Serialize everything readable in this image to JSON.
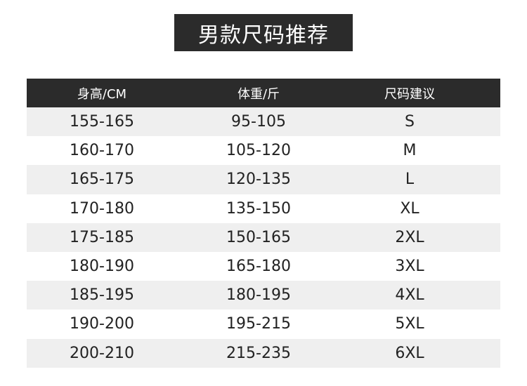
{
  "title": "男款尺码推荐",
  "headers": [
    "身高/CM",
    "体重/斤",
    "尺码建议"
  ],
  "rows": [
    [
      "155-165",
      "95-105",
      "S"
    ],
    [
      "160-170",
      "105-120",
      "M"
    ],
    [
      "165-175",
      "120-135",
      "L"
    ],
    [
      "170-180",
      "135-150",
      "XL"
    ],
    [
      "175-185",
      "150-165",
      "2XL"
    ],
    [
      "180-190",
      "165-180",
      "3XL"
    ],
    [
      "185-195",
      "180-195",
      "4XL"
    ],
    [
      "190-200",
      "195-215",
      "5XL"
    ],
    [
      "200-210",
      "215-235",
      "6XL"
    ]
  ],
  "colors": {
    "header_bg": "#2b2b2b",
    "stripe": "#efefef"
  }
}
